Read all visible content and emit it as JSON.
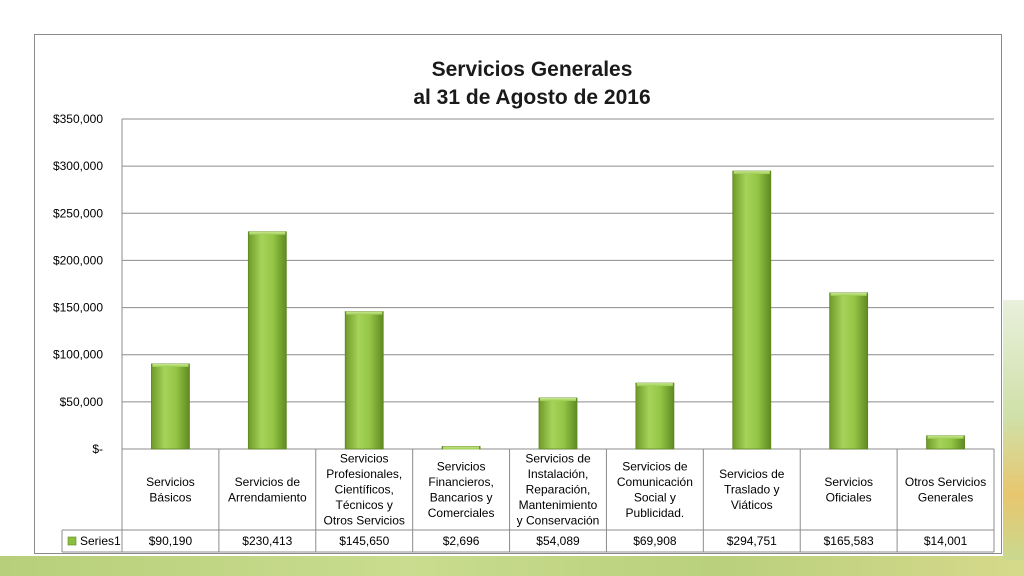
{
  "chart_data": {
    "type": "bar",
    "title": [
      "Servicios Generales",
      "al 31 de Agosto de 2016"
    ],
    "categories": [
      [
        "Servicios",
        "Básicos"
      ],
      [
        "Servicios de",
        "Arrendamiento"
      ],
      [
        "Servicios",
        "Profesionales,",
        "Científicos,",
        "Técnicos y",
        "Otros Servicios"
      ],
      [
        "Servicios",
        "Financieros,",
        "Bancarios y",
        "Comerciales"
      ],
      [
        "Servicios de",
        "Instalación,",
        "Reparación,",
        "Mantenimiento",
        "y Conservación"
      ],
      [
        "Servicios de",
        "Comunicación",
        "Social y",
        "Publicidad."
      ],
      [
        "Servicios de",
        "Traslado y",
        "Viáticos"
      ],
      [
        "Servicios",
        "Oficiales"
      ],
      [
        "Otros Servicios",
        "Generales"
      ]
    ],
    "series": [
      {
        "name": "Series1",
        "values": [
          90190,
          230413,
          145650,
          2696,
          54089,
          69908,
          294751,
          165583,
          14001
        ],
        "value_labels": [
          "$90,190",
          "$230,413",
          "$145,650",
          "$2,696",
          "$54,089",
          "$69,908",
          "$294,751",
          "$165,583",
          "$14,001"
        ],
        "color": "#8cbf3f"
      }
    ],
    "ylim": [
      0,
      350000
    ],
    "yticks": [
      0,
      50000,
      100000,
      150000,
      200000,
      250000,
      300000,
      350000
    ],
    "ytick_labels": [
      "$-",
      "$50,000",
      "$100,000",
      "$150,000",
      "$200,000",
      "$250,000",
      "$300,000",
      "$350,000"
    ],
    "grid": true,
    "legend": "data-table"
  }
}
